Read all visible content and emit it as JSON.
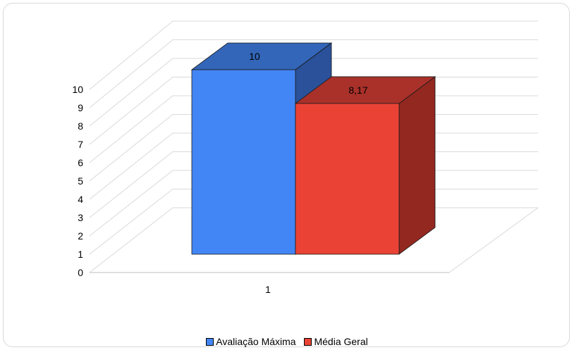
{
  "chart_data": {
    "type": "bar",
    "variant": "3d-clustered-column",
    "categories": [
      "1"
    ],
    "series": [
      {
        "name": "Avaliação Máxima",
        "values": [
          10
        ],
        "label": "10",
        "color": "#4285f4",
        "top_color": "#3366b8",
        "side_color": "#2a5199"
      },
      {
        "name": "Média Geral",
        "values": [
          8.17
        ],
        "label": "8,17",
        "color": "#ea4335",
        "top_color": "#a9312a",
        "side_color": "#922820"
      }
    ],
    "y_ticks": [
      "0",
      "1",
      "2",
      "3",
      "4",
      "5",
      "6",
      "7",
      "8",
      "9",
      "10"
    ],
    "ylim": [
      0,
      10
    ],
    "grid": true,
    "legend_position": "bottom"
  }
}
